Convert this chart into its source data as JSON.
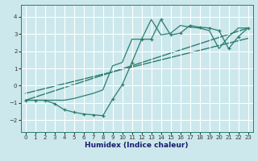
{
  "xlabel": "Humidex (Indice chaleur)",
  "bg_color": "#cce8ed",
  "grid_color": "#ffffff",
  "line_color": "#2d7d6e",
  "xlim": [
    -0.5,
    23.5
  ],
  "ylim": [
    -2.7,
    4.7
  ],
  "xticks": [
    0,
    1,
    2,
    3,
    4,
    5,
    6,
    7,
    8,
    9,
    10,
    11,
    12,
    13,
    14,
    15,
    16,
    17,
    18,
    19,
    20,
    21,
    22,
    23
  ],
  "yticks": [
    -2,
    -1,
    0,
    1,
    2,
    3,
    4
  ],
  "zigzag_x": [
    0,
    1,
    2,
    3,
    4,
    5,
    6,
    7,
    8,
    9,
    10,
    11,
    12,
    13,
    14,
    15,
    16,
    17,
    18,
    19,
    20,
    21,
    22,
    23
  ],
  "zigzag_y": [
    -0.85,
    -0.85,
    -0.85,
    -1.05,
    -1.4,
    -1.55,
    -1.65,
    -1.7,
    -1.75,
    -0.8,
    0.05,
    1.35,
    2.7,
    2.7,
    3.85,
    2.95,
    3.05,
    3.5,
    3.4,
    3.35,
    3.2,
    2.15,
    2.85,
    3.35
  ],
  "smooth_x": [
    0,
    1,
    2,
    3,
    4,
    5,
    6,
    7,
    8,
    9,
    10,
    11,
    12,
    13,
    14,
    15,
    16,
    17,
    18,
    19,
    20,
    21,
    22,
    23
  ],
  "smooth_y": [
    -0.85,
    -0.85,
    -0.85,
    -0.85,
    -0.85,
    -0.75,
    -0.6,
    -0.45,
    -0.25,
    1.15,
    1.35,
    2.7,
    2.7,
    3.85,
    2.95,
    3.05,
    3.5,
    3.4,
    3.35,
    3.2,
    2.15,
    2.85,
    3.35,
    3.35
  ],
  "trend1_x": [
    0,
    23
  ],
  "trend1_y": [
    -0.85,
    3.35
  ],
  "trend2_x": [
    0,
    23
  ],
  "trend2_y": [
    -0.45,
    2.75
  ]
}
